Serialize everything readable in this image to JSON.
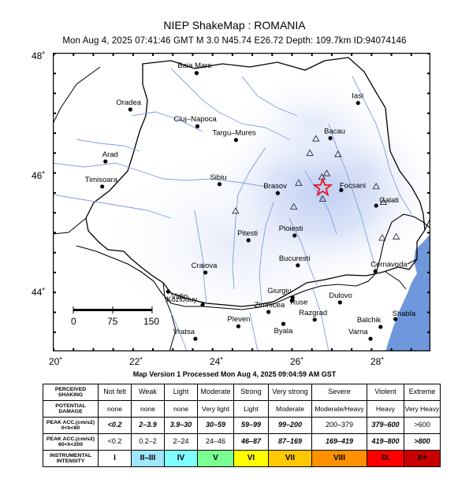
{
  "header": {
    "title": "NIEP ShakeMap : ROMANIA",
    "subtitle": "Mon Aug  4, 2025 07:41:46 GMT   M 3.0   N45.74 E26.72   Depth: 109.7km   ID:94074146"
  },
  "map": {
    "lat_range": [
      43,
      48
    ],
    "lon_range": [
      20,
      29.4
    ],
    "y_ticks": [
      "48˚",
      "46˚",
      "44˚"
    ],
    "x_ticks": [
      "20˚",
      "22˚",
      "24˚",
      "26˚",
      "28˚"
    ],
    "epicenter": {
      "lon": 26.72,
      "lat": 45.74
    },
    "scale_labels": [
      "0",
      "75",
      "150"
    ],
    "cities": [
      {
        "name": "Baia Mare",
        "lon": 23.58,
        "lat": 47.66
      },
      {
        "name": "Oradea",
        "lon": 21.93,
        "lat": 47.05
      },
      {
        "name": "Iasi",
        "lon": 27.6,
        "lat": 47.16
      },
      {
        "name": "Cluj–Napoca",
        "lon": 23.6,
        "lat": 46.77
      },
      {
        "name": "Targu–Mures",
        "lon": 24.56,
        "lat": 46.54
      },
      {
        "name": "Bacau",
        "lon": 26.91,
        "lat": 46.57
      },
      {
        "name": "Arad",
        "lon": 21.31,
        "lat": 46.18
      },
      {
        "name": "Timisoara",
        "lon": 21.23,
        "lat": 45.76
      },
      {
        "name": "Sibiu",
        "lon": 24.15,
        "lat": 45.8
      },
      {
        "name": "Brasov",
        "lon": 25.6,
        "lat": 45.65
      },
      {
        "name": "Focsani",
        "lon": 27.18,
        "lat": 45.7
      },
      {
        "name": "Galati",
        "lon": 28.05,
        "lat": 45.44
      },
      {
        "name": "Ploiesti",
        "lon": 26.02,
        "lat": 44.94
      },
      {
        "name": "Pitesti",
        "lon": 24.87,
        "lat": 44.86
      },
      {
        "name": "Craiova",
        "lon": 23.8,
        "lat": 44.32
      },
      {
        "name": "Bucuresti",
        "lon": 26.1,
        "lat": 44.44
      },
      {
        "name": "Cernavoda",
        "lon": 28.03,
        "lat": 44.34
      },
      {
        "name": "Giurgiu",
        "lon": 25.97,
        "lat": 43.9
      },
      {
        "name": "Zimnicea",
        "lon": 25.37,
        "lat": 43.66
      },
      {
        "name": "Ruse",
        "lon": 25.95,
        "lat": 43.85
      },
      {
        "name": "Dulovo",
        "lon": 27.15,
        "lat": 43.82
      },
      {
        "name": "Kozloduy",
        "lon": 23.73,
        "lat": 43.78
      },
      {
        "name": "Vidin",
        "lon": 22.87,
        "lat": 44.0
      },
      {
        "name": "Pleven",
        "lon": 24.62,
        "lat": 43.42
      },
      {
        "name": "Byala",
        "lon": 25.74,
        "lat": 43.46
      },
      {
        "name": "Razgrad",
        "lon": 26.52,
        "lat": 43.53
      },
      {
        "name": "Shabla",
        "lon": 28.53,
        "lat": 43.54
      },
      {
        "name": "Balchik",
        "lon": 28.16,
        "lat": 43.41
      },
      {
        "name": "Varna",
        "lon": 27.91,
        "lat": 43.21
      },
      {
        "name": "Vratsa",
        "lon": 23.55,
        "lat": 43.21
      }
    ],
    "stations": [
      {
        "lon": 26.55,
        "lat": 46.56
      },
      {
        "lon": 26.4,
        "lat": 46.32
      },
      {
        "lon": 27.1,
        "lat": 46.3
      },
      {
        "lon": 26.7,
        "lat": 45.92
      },
      {
        "lon": 26.82,
        "lat": 45.98
      },
      {
        "lon": 26.12,
        "lat": 45.82
      },
      {
        "lon": 26.72,
        "lat": 45.55
      },
      {
        "lon": 26.0,
        "lat": 45.42
      },
      {
        "lon": 28.05,
        "lat": 45.76
      },
      {
        "lon": 28.23,
        "lat": 45.5
      },
      {
        "lon": 28.2,
        "lat": 44.9
      },
      {
        "lon": 28.55,
        "lat": 44.92
      },
      {
        "lon": 24.55,
        "lat": 45.35
      }
    ]
  },
  "map_version": "Map Version 1 Processed Mon Aug  4, 2025 09:04:59 AM GST",
  "legend": {
    "rows": [
      {
        "head": "PERCEIVED SHAKING",
        "cells": [
          "Not felt",
          "Weak",
          "Light",
          "Moderate",
          "Strong",
          "Very strong",
          "Severe",
          "Violent",
          "Extreme"
        ]
      },
      {
        "head": "POTENTIAL DAMAGE",
        "cells": [
          "none",
          "none",
          "none",
          "Very light",
          "Light",
          "Moderate",
          "Moderate/Heavy",
          "Heavy",
          "Very Heavy"
        ]
      },
      {
        "head1": "PEAK ACC.(cm/s2)",
        "head2": "0<h<60",
        "cells": [
          "<0.2",
          "2–3.9",
          "3.9–30",
          "30–59",
          "59–99",
          "99–200",
          "200–379",
          "379–600",
          ">600"
        ]
      },
      {
        "head1": "PEAK ACC.(cm/s2)",
        "head2": "60<h<200",
        "cells": [
          "<0.2",
          "0.2–2",
          "2–24",
          "24–46",
          "46–87",
          "87–169",
          "169–419",
          "419–800",
          ">800"
        ]
      },
      {
        "head": "INSTRUMENTAL INTENSITY",
        "cells": [
          "I",
          "II–III",
          "IV",
          "V",
          "VI",
          "VII",
          "VIII",
          "IX",
          "X+"
        ]
      }
    ],
    "colors": [
      "#ffffff",
      "#bfccff",
      "#a0e6ff",
      "#80ffff",
      "#7aff93",
      "#ffff00",
      "#ffc800",
      "#ff9100",
      "#ff0000",
      "#c80000"
    ]
  }
}
